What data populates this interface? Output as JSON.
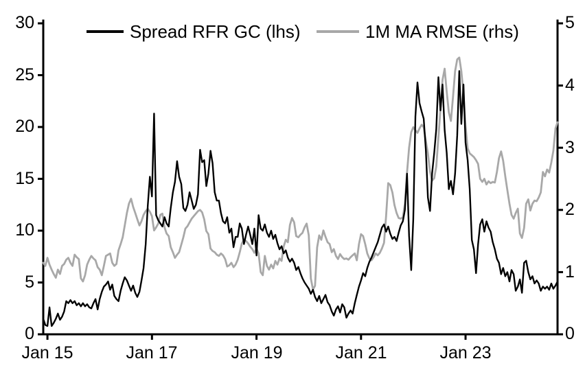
{
  "page": {
    "background": "#ffffff"
  },
  "axes": {
    "left": {
      "labels": [
        "30",
        "25",
        "20",
        "15",
        "10",
        "5",
        "0"
      ],
      "values": [
        30,
        25,
        20,
        15,
        10,
        5,
        0
      ]
    },
    "right": {
      "labels": [
        "5",
        "4",
        "3",
        "2",
        "1",
        "0"
      ],
      "values": [
        5,
        4,
        3,
        2,
        1,
        0
      ]
    },
    "x": {
      "labels": [
        "Jan 15",
        "Jan 17",
        "Jan 19",
        "Jan 21",
        "Jan 23"
      ],
      "values": [
        2015,
        2017,
        2019,
        2021,
        2023
      ]
    }
  },
  "chart_data": {
    "type": "line",
    "title": "",
    "grid": false,
    "legend_position": "top",
    "x_start": 2014.92,
    "x_step": 0.04,
    "xlim": [
      2014.92,
      2024.76
    ],
    "ylim_left": [
      0,
      30
    ],
    "ylim_right": [
      0,
      5
    ],
    "x_tick_labels": [
      "Jan 15",
      "Jan 17",
      "Jan 19",
      "Jan 21",
      "Jan 23"
    ],
    "series": [
      {
        "name": "Spread RFR GC (lhs)",
        "axis": "left",
        "color": "#000000",
        "width": 2.4,
        "values": [
          1.5,
          0.9,
          0.8,
          2.6,
          0.8,
          1.1,
          1.5,
          2.0,
          1.4,
          1.7,
          2.2,
          3.2,
          3.0,
          3.3,
          3.0,
          3.2,
          2.8,
          3.0,
          2.7,
          3.0,
          2.7,
          2.9,
          2.6,
          2.5,
          3.0,
          3.4,
          2.4,
          3.4,
          4.1,
          4.6,
          4.8,
          5.1,
          4.3,
          4.8,
          3.7,
          3.4,
          3.2,
          4.2,
          4.9,
          5.5,
          5.2,
          4.7,
          4.2,
          4.7,
          4.0,
          3.6,
          4.1,
          5.2,
          6.4,
          8.7,
          12.4,
          15.2,
          13.3,
          21.3,
          11.5,
          11.0,
          10.7,
          10.4,
          11.3,
          10.7,
          10.4,
          12.2,
          13.7,
          14.7,
          16.7,
          15.2,
          14.5,
          12.2,
          11.9,
          12.5,
          13.7,
          12.9,
          12.1,
          12.5,
          13.5,
          17.8,
          16.6,
          16.8,
          14.3,
          15.5,
          17.7,
          16.5,
          13.7,
          12.9,
          12.9,
          11.7,
          10.9,
          10.7,
          11.3,
          9.8,
          10.2,
          8.4,
          9.4,
          9.4,
          10.7,
          10.2,
          8.7,
          9.6,
          10.4,
          9.6,
          8.7,
          10.2,
          7.6,
          11.5,
          10.2,
          10.0,
          10.6,
          9.8,
          9.4,
          10.0,
          9.2,
          9.6,
          8.8,
          8.2,
          8.5,
          7.8,
          8.1,
          7.4,
          7.0,
          7.3,
          6.9,
          6.2,
          6.5,
          5.9,
          5.4,
          5.0,
          4.7,
          4.4,
          3.9,
          4.3,
          3.6,
          3.2,
          3.7,
          3.0,
          3.4,
          3.8,
          3.1,
          2.8,
          2.2,
          1.8,
          2.4,
          2.7,
          2.1,
          2.9,
          2.6,
          1.6,
          2.0,
          2.3,
          2.0,
          3.0,
          3.8,
          4.6,
          5.2,
          5.9,
          5.6,
          6.4,
          7.0,
          7.4,
          7.9,
          8.4,
          8.9,
          9.6,
          10.3,
          10.6,
          9.9,
          10.4,
          9.7,
          9.2,
          9.4,
          9.0,
          9.8,
          10.5,
          10.9,
          12.0,
          15.5,
          9.5,
          6.2,
          11.1,
          21.0,
          24.3,
          22.3,
          21.5,
          20.8,
          17.8,
          13.2,
          11.9,
          15.5,
          17.5,
          19.8,
          24.8,
          21.6,
          24.1,
          19.7,
          17.5,
          14.0,
          14.8,
          13.5,
          15.5,
          19.2,
          25.4,
          20.3,
          24.1,
          18.5,
          16.8,
          14.0,
          9.1,
          8.2,
          5.9,
          8.7,
          10.6,
          11.1,
          9.9,
          10.9,
          10.3,
          9.9,
          8.9,
          8.2,
          7.3,
          6.9,
          5.8,
          6.4,
          5.6,
          6.0,
          5.1,
          6.2,
          5.8,
          4.2,
          4.6,
          5.3,
          4.0,
          6.9,
          7.1,
          6.0,
          5.3,
          5.6,
          4.9,
          5.2,
          4.9,
          4.2,
          4.6,
          4.4,
          4.6,
          4.3,
          4.9,
          4.4,
          4.7,
          5.1
        ]
      },
      {
        "name": "1M MA RMSE (rhs)",
        "axis": "right",
        "color": "#a8a8a8",
        "width": 2.8,
        "values": [
          1.15,
          1.1,
          1.23,
          1.12,
          1.04,
          0.97,
          0.91,
          1.04,
          0.97,
          1.1,
          1.13,
          1.2,
          1.23,
          1.15,
          1.1,
          1.28,
          1.24,
          1.21,
          0.9,
          0.85,
          0.95,
          1.12,
          1.2,
          1.26,
          1.22,
          1.19,
          1.08,
          1.04,
          0.95,
          1.1,
          1.26,
          1.28,
          1.3,
          1.15,
          1.1,
          1.13,
          1.35,
          1.45,
          1.56,
          1.75,
          1.95,
          2.1,
          2.18,
          2.05,
          1.95,
          1.85,
          1.75,
          1.82,
          1.92,
          1.98,
          2.02,
          1.97,
          1.9,
          1.67,
          1.72,
          1.78,
          1.92,
          1.94,
          1.72,
          1.62,
          1.58,
          1.4,
          1.32,
          1.23,
          1.28,
          1.32,
          1.44,
          1.56,
          1.7,
          1.74,
          1.8,
          1.86,
          1.9,
          1.94,
          1.98,
          2.0,
          1.96,
          1.85,
          1.66,
          1.61,
          1.38,
          1.34,
          1.32,
          1.28,
          1.26,
          1.3,
          1.27,
          1.21,
          1.09,
          1.11,
          1.15,
          1.08,
          1.12,
          1.2,
          1.32,
          1.46,
          1.52,
          1.5,
          1.46,
          1.41,
          1.37,
          1.31,
          1.38,
          1.3,
          1.0,
          0.95,
          1.26,
          1.1,
          1.04,
          1.12,
          1.06,
          1.18,
          1.12,
          1.22,
          1.18,
          1.41,
          1.52,
          1.48,
          1.76,
          1.87,
          1.8,
          1.58,
          1.56,
          1.6,
          1.63,
          1.72,
          1.78,
          1.59,
          0.9,
          0.72,
          0.78,
          1.4,
          1.59,
          1.52,
          1.67,
          1.57,
          1.48,
          1.45,
          1.32,
          1.37,
          1.26,
          1.21,
          1.29,
          1.24,
          1.21,
          1.22,
          1.2,
          1.24,
          1.27,
          1.3,
          1.19,
          1.45,
          1.61,
          1.58,
          1.45,
          1.3,
          1.22,
          1.19,
          1.24,
          1.3,
          1.27,
          1.31,
          1.38,
          1.47,
          1.9,
          2.43,
          2.4,
          2.28,
          2.08,
          1.95,
          1.87,
          1.86,
          1.88,
          2.1,
          2.6,
          3.0,
          3.25,
          3.33,
          3.28,
          3.24,
          3.31,
          3.37,
          3.33,
          3.11,
          2.91,
          2.62,
          2.47,
          2.51,
          2.7,
          3.17,
          3.61,
          4.09,
          4.27,
          3.9,
          3.57,
          3.43,
          3.82,
          4.23,
          4.42,
          4.45,
          4.23,
          3.87,
          3.35,
          2.99,
          2.91,
          2.88,
          2.85,
          2.8,
          2.74,
          2.5,
          2.45,
          2.5,
          2.41,
          2.46,
          2.43,
          2.45,
          2.44,
          2.61,
          2.83,
          2.94,
          2.79,
          2.54,
          2.32,
          2.1,
          1.92,
          1.86,
          1.95,
          2.02,
          1.62,
          1.55,
          1.71,
          2.1,
          2.17,
          1.99,
          2.1,
          2.15,
          2.14,
          2.2,
          2.28,
          2.61,
          2.54,
          2.65,
          2.6,
          2.76,
          2.95,
          3.31,
          3.41
        ]
      }
    ]
  }
}
